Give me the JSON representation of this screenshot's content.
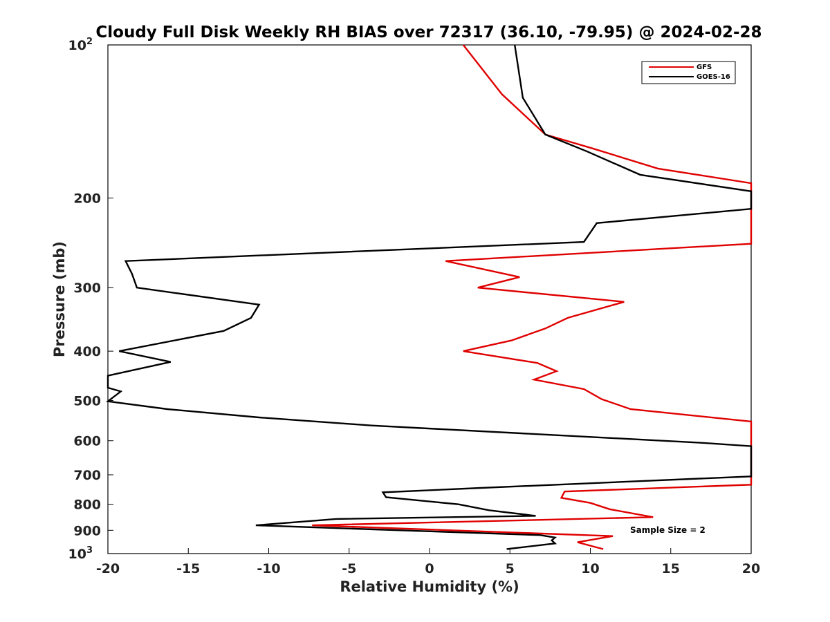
{
  "chart_data": {
    "type": "line",
    "title": "Cloudy Full Disk Weekly RH BIAS over 72317 (36.10, -79.95) @ 2024-02-28",
    "xlabel": "Relative Humidity (%)",
    "ylabel": "Pressure (mb)",
    "xlim": [
      -20,
      20
    ],
    "ylim": [
      100,
      1000
    ],
    "yscale": "log",
    "y_reversed": true,
    "grid": false,
    "legend_position": "top-right",
    "x_ticks": [
      "-20",
      "-15",
      "-10",
      "-5",
      "0",
      "5",
      "10",
      "15",
      "20"
    ],
    "y_ticks": [
      {
        "base": "10",
        "exp": "2"
      },
      {
        "base": "200",
        "exp": ""
      },
      {
        "base": "300",
        "exp": ""
      },
      {
        "base": "400",
        "exp": ""
      },
      {
        "base": "500",
        "exp": ""
      },
      {
        "base": "600",
        "exp": ""
      },
      {
        "base": "700",
        "exp": ""
      },
      {
        "base": "800",
        "exp": ""
      },
      {
        "base": "900",
        "exp": ""
      },
      {
        "base": "10",
        "exp": "3"
      }
    ],
    "series": [
      {
        "name": "GFS",
        "color": "#e00000",
        "points": [
          [
            2.1,
            100
          ],
          [
            4.5,
            125
          ],
          [
            7.2,
            150
          ],
          [
            10.2,
            160
          ],
          [
            14.2,
            175
          ],
          [
            20,
            187
          ],
          [
            20,
            246
          ],
          [
            1,
            266
          ],
          [
            5.6,
            286
          ],
          [
            3,
            300
          ],
          [
            12.1,
            320
          ],
          [
            8.6,
            344
          ],
          [
            7.2,
            361
          ],
          [
            5.1,
            381
          ],
          [
            2.1,
            400
          ],
          [
            6.7,
            422
          ],
          [
            7.9,
            438
          ],
          [
            6.5,
            455
          ],
          [
            9.6,
            475
          ],
          [
            10.7,
            497
          ],
          [
            12.5,
            520
          ],
          [
            20,
            550
          ],
          [
            20,
            732
          ],
          [
            8.4,
            755
          ],
          [
            8.2,
            777
          ],
          [
            10,
            795
          ],
          [
            11.2,
            818
          ],
          [
            13.9,
            848
          ],
          [
            -7.3,
            880
          ],
          [
            11.4,
            924
          ],
          [
            9.2,
            950
          ],
          [
            10.8,
            980
          ]
        ]
      },
      {
        "name": "GOES-16",
        "color": "#000000",
        "points": [
          [
            5.3,
            100
          ],
          [
            5.8,
            127
          ],
          [
            7.2,
            150
          ],
          [
            9.8,
            162
          ],
          [
            13.1,
            180
          ],
          [
            20,
            194
          ],
          [
            20,
            210
          ],
          [
            10.4,
            224
          ],
          [
            9.6,
            244
          ],
          [
            -18.9,
            266
          ],
          [
            -18.5,
            282
          ],
          [
            -18.2,
            300
          ],
          [
            -10.6,
            324
          ],
          [
            -11.1,
            344
          ],
          [
            -12.8,
            365
          ],
          [
            -19.3,
            400
          ],
          [
            -16.1,
            420
          ],
          [
            -20,
            447
          ],
          [
            -20,
            472
          ],
          [
            -19.2,
            480
          ],
          [
            -20,
            502
          ],
          [
            -16.3,
            520
          ],
          [
            -10.6,
            540
          ],
          [
            -3.6,
            560
          ],
          [
            16.7,
            605
          ],
          [
            20,
            615
          ],
          [
            20,
            705
          ],
          [
            3.2,
            743
          ],
          [
            -2.9,
            758
          ],
          [
            -2.7,
            775
          ],
          [
            1.8,
            800
          ],
          [
            3.7,
            822
          ],
          [
            6.6,
            843
          ],
          [
            -5.8,
            855
          ],
          [
            -10.8,
            880
          ],
          [
            6.9,
            920
          ],
          [
            7.8,
            930
          ],
          [
            7.6,
            942
          ],
          [
            7.8,
            955
          ],
          [
            4.8,
            980
          ]
        ]
      }
    ],
    "legend": [
      "GFS",
      "GOES-16"
    ],
    "annotation": "Sample Size = 2"
  }
}
